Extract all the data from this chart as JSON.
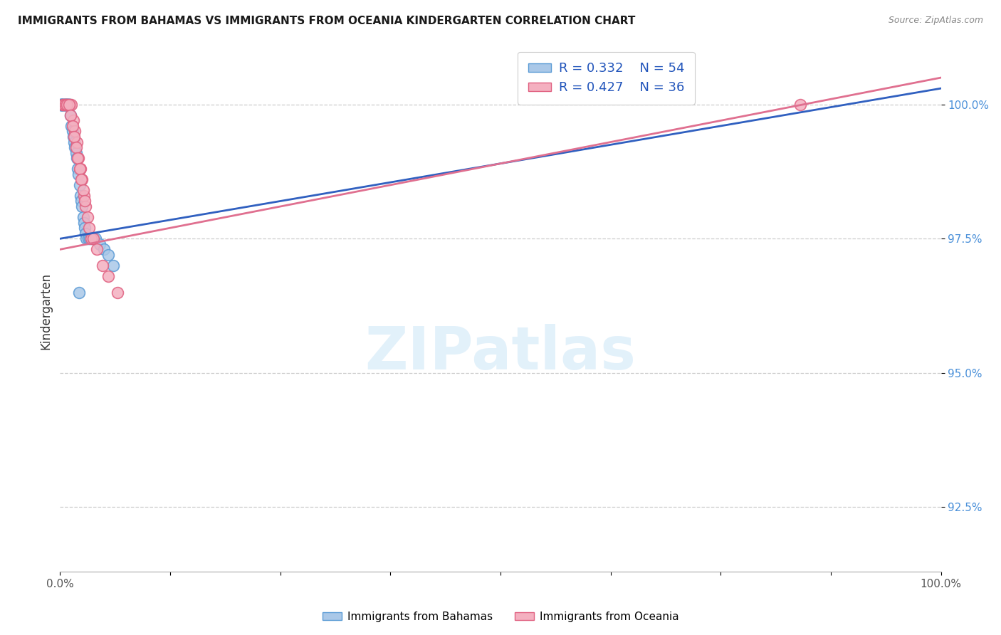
{
  "title": "IMMIGRANTS FROM BAHAMAS VS IMMIGRANTS FROM OCEANIA KINDERGARTEN CORRELATION CHART",
  "source": "Source: ZipAtlas.com",
  "ylabel_label": "Kindergarten",
  "yticks": [
    92.5,
    95.0,
    97.5,
    100.0
  ],
  "ytick_labels": [
    "92.5%",
    "95.0%",
    "97.5%",
    "100.0%"
  ],
  "xlim": [
    0.0,
    100.0
  ],
  "ylim": [
    91.3,
    101.0
  ],
  "series1_color": "#aac8e8",
  "series1_edge_color": "#5b9bd5",
  "series2_color": "#f4b0c0",
  "series2_edge_color": "#e06080",
  "line1_color": "#3060c0",
  "line2_color": "#e07090",
  "legend_label1": "Immigrants from Bahamas",
  "legend_label2": "Immigrants from Oceania",
  "R1": 0.332,
  "N1": 54,
  "R2": 0.427,
  "N2": 36,
  "bahamas_x": [
    0.05,
    0.1,
    0.15,
    0.2,
    0.25,
    0.3,
    0.35,
    0.4,
    0.45,
    0.5,
    0.55,
    0.6,
    0.65,
    0.7,
    0.75,
    0.8,
    0.85,
    0.9,
    0.95,
    1.0,
    1.05,
    1.1,
    1.2,
    1.3,
    1.4,
    1.5,
    1.6,
    1.7,
    1.8,
    1.9,
    2.0,
    2.1,
    2.2,
    2.3,
    2.4,
    2.5,
    2.6,
    2.7,
    2.8,
    2.9,
    3.0,
    3.2,
    3.4,
    3.6,
    3.8,
    4.0,
    4.5,
    5.0,
    5.5,
    6.0,
    0.08,
    0.12,
    0.18,
    2.15
  ],
  "bahamas_y": [
    100.0,
    100.0,
    100.0,
    100.0,
    100.0,
    100.0,
    100.0,
    100.0,
    100.0,
    100.0,
    100.0,
    100.0,
    100.0,
    100.0,
    100.0,
    100.0,
    100.0,
    100.0,
    100.0,
    100.0,
    100.0,
    100.0,
    99.8,
    99.6,
    99.5,
    99.4,
    99.3,
    99.2,
    99.1,
    99.0,
    98.8,
    98.7,
    98.5,
    98.3,
    98.2,
    98.1,
    97.9,
    97.8,
    97.7,
    97.6,
    97.5,
    97.5,
    97.5,
    97.5,
    97.5,
    97.5,
    97.4,
    97.3,
    97.2,
    97.0,
    100.0,
    100.0,
    100.0,
    96.5
  ],
  "oceania_x": [
    0.3,
    0.5,
    0.7,
    0.9,
    1.1,
    1.3,
    1.5,
    1.7,
    1.9,
    2.1,
    2.3,
    2.5,
    2.7,
    2.9,
    3.1,
    3.3,
    3.5,
    3.8,
    4.2,
    4.8,
    5.5,
    6.5,
    0.4,
    0.6,
    0.8,
    1.0,
    1.2,
    1.4,
    1.6,
    1.8,
    2.0,
    2.2,
    2.4,
    2.6,
    2.8,
    84.0
  ],
  "oceania_y": [
    100.0,
    100.0,
    100.0,
    100.0,
    100.0,
    100.0,
    99.7,
    99.5,
    99.3,
    99.0,
    98.8,
    98.6,
    98.3,
    98.1,
    97.9,
    97.7,
    97.5,
    97.5,
    97.3,
    97.0,
    96.8,
    96.5,
    100.0,
    100.0,
    100.0,
    100.0,
    99.8,
    99.6,
    99.4,
    99.2,
    99.0,
    98.8,
    98.6,
    98.4,
    98.2,
    100.0
  ],
  "line1_x0": 0.0,
  "line1_y0": 97.5,
  "line1_x1": 100.0,
  "line1_y1": 100.3,
  "line2_x0": 0.0,
  "line2_y0": 97.3,
  "line2_x1": 100.0,
  "line2_y1": 100.5,
  "watermark": "ZIPatlas",
  "watermark_color": "#d0e8f8",
  "bg_color": "#ffffff"
}
